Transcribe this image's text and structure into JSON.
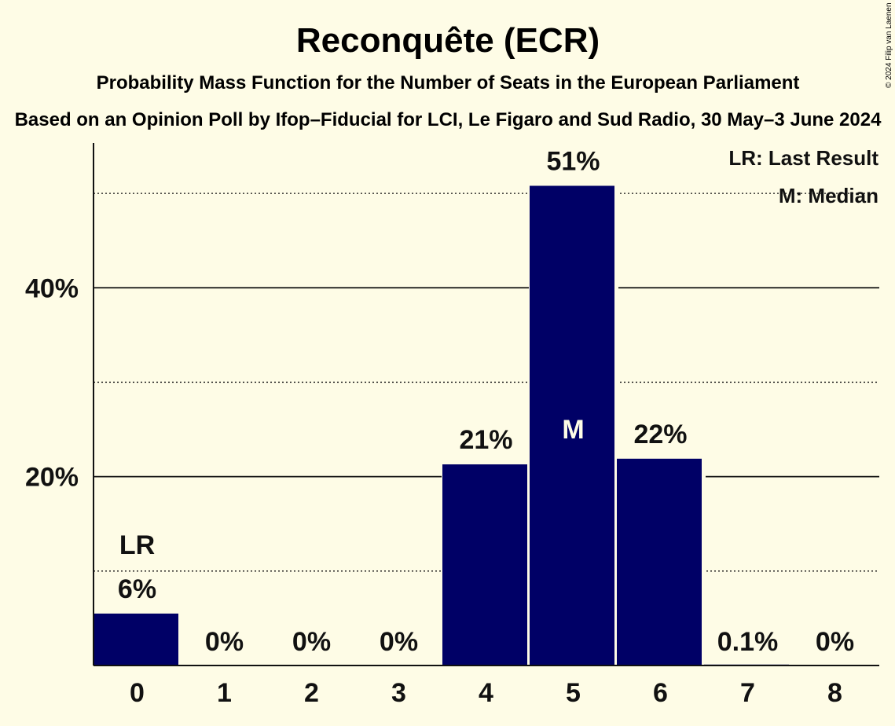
{
  "chart_data": {
    "type": "bar",
    "title": "Reconquête (ECR)",
    "subtitle": "Probability Mass Function for the Number of Seats in the European Parliament",
    "source_line": "Based on an Opinion Poll by Ifop–Fiducial for LCI, Le Figaro and Sud Radio, 30 May–3 June 2024",
    "copyright": "© 2024 Filip van Laenen",
    "categories": [
      "0",
      "1",
      "2",
      "3",
      "4",
      "5",
      "6",
      "7",
      "8"
    ],
    "values": [
      5.5,
      0,
      0,
      0,
      21.3,
      50.8,
      21.9,
      0.1,
      0
    ],
    "value_labels": [
      "6%",
      "0%",
      "0%",
      "0%",
      "21%",
      "51%",
      "22%",
      "0.1%",
      "0%"
    ],
    "ylim": [
      0,
      55
    ],
    "yticks": [
      {
        "value": 20,
        "label": "20%"
      },
      {
        "value": 40,
        "label": "40%"
      }
    ],
    "minor_gridlines": [
      10,
      30,
      50
    ],
    "last_result_index": 0,
    "median_index": 5,
    "markers": {
      "last_result": "LR",
      "median": "M"
    },
    "legend": {
      "position": "top-right",
      "entries": [
        "LR: Last Result",
        "M: Median"
      ]
    },
    "colors": {
      "bar": "#000066",
      "background": "#fefce6",
      "text": "#111111",
      "median_text": "#fefce6"
    }
  }
}
